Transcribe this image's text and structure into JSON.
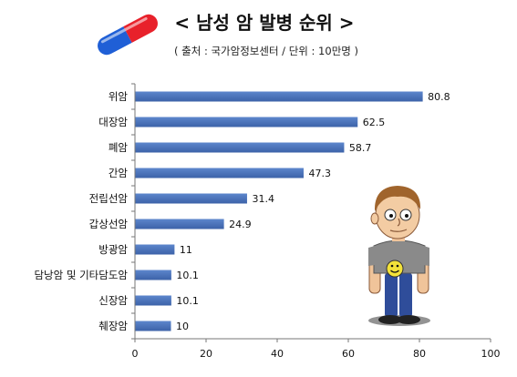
{
  "header": {
    "title": "< 남성 암 발병 순위 >",
    "subtitle": "( 출처 : 국가암정보센터 / 단위 : 10만명 )"
  },
  "decorations": {
    "pill_icon": "capsule-pill-icon",
    "pill_colors": [
      "#e8212b",
      "#1f5fd6"
    ],
    "character_icon": "cartoon-man-icon",
    "character_shirt_face": "smiley-face-icon"
  },
  "chart_data": {
    "type": "bar",
    "orientation": "horizontal",
    "categories": [
      "위암",
      "대장암",
      "폐암",
      "간암",
      "전립선암",
      "갑상선암",
      "방광암",
      "담낭암 및 기타담도암",
      "신장암",
      "췌장암"
    ],
    "values": [
      80.8,
      62.5,
      58.7,
      47.3,
      31.4,
      24.9,
      11,
      10.1,
      10.1,
      10
    ],
    "value_labels": [
      "80.8",
      "62.5",
      "58.7",
      "47.3",
      "31.4",
      "24.9",
      "11",
      "10.1",
      "10.1",
      "10"
    ],
    "xlim": [
      0,
      100
    ],
    "xticks": [
      0,
      20,
      40,
      60,
      80,
      100
    ],
    "xtick_labels": [
      "0",
      "20",
      "40",
      "60",
      "80",
      "100"
    ],
    "bar_color": "#4a72b8",
    "grid": false,
    "legend": "none"
  }
}
